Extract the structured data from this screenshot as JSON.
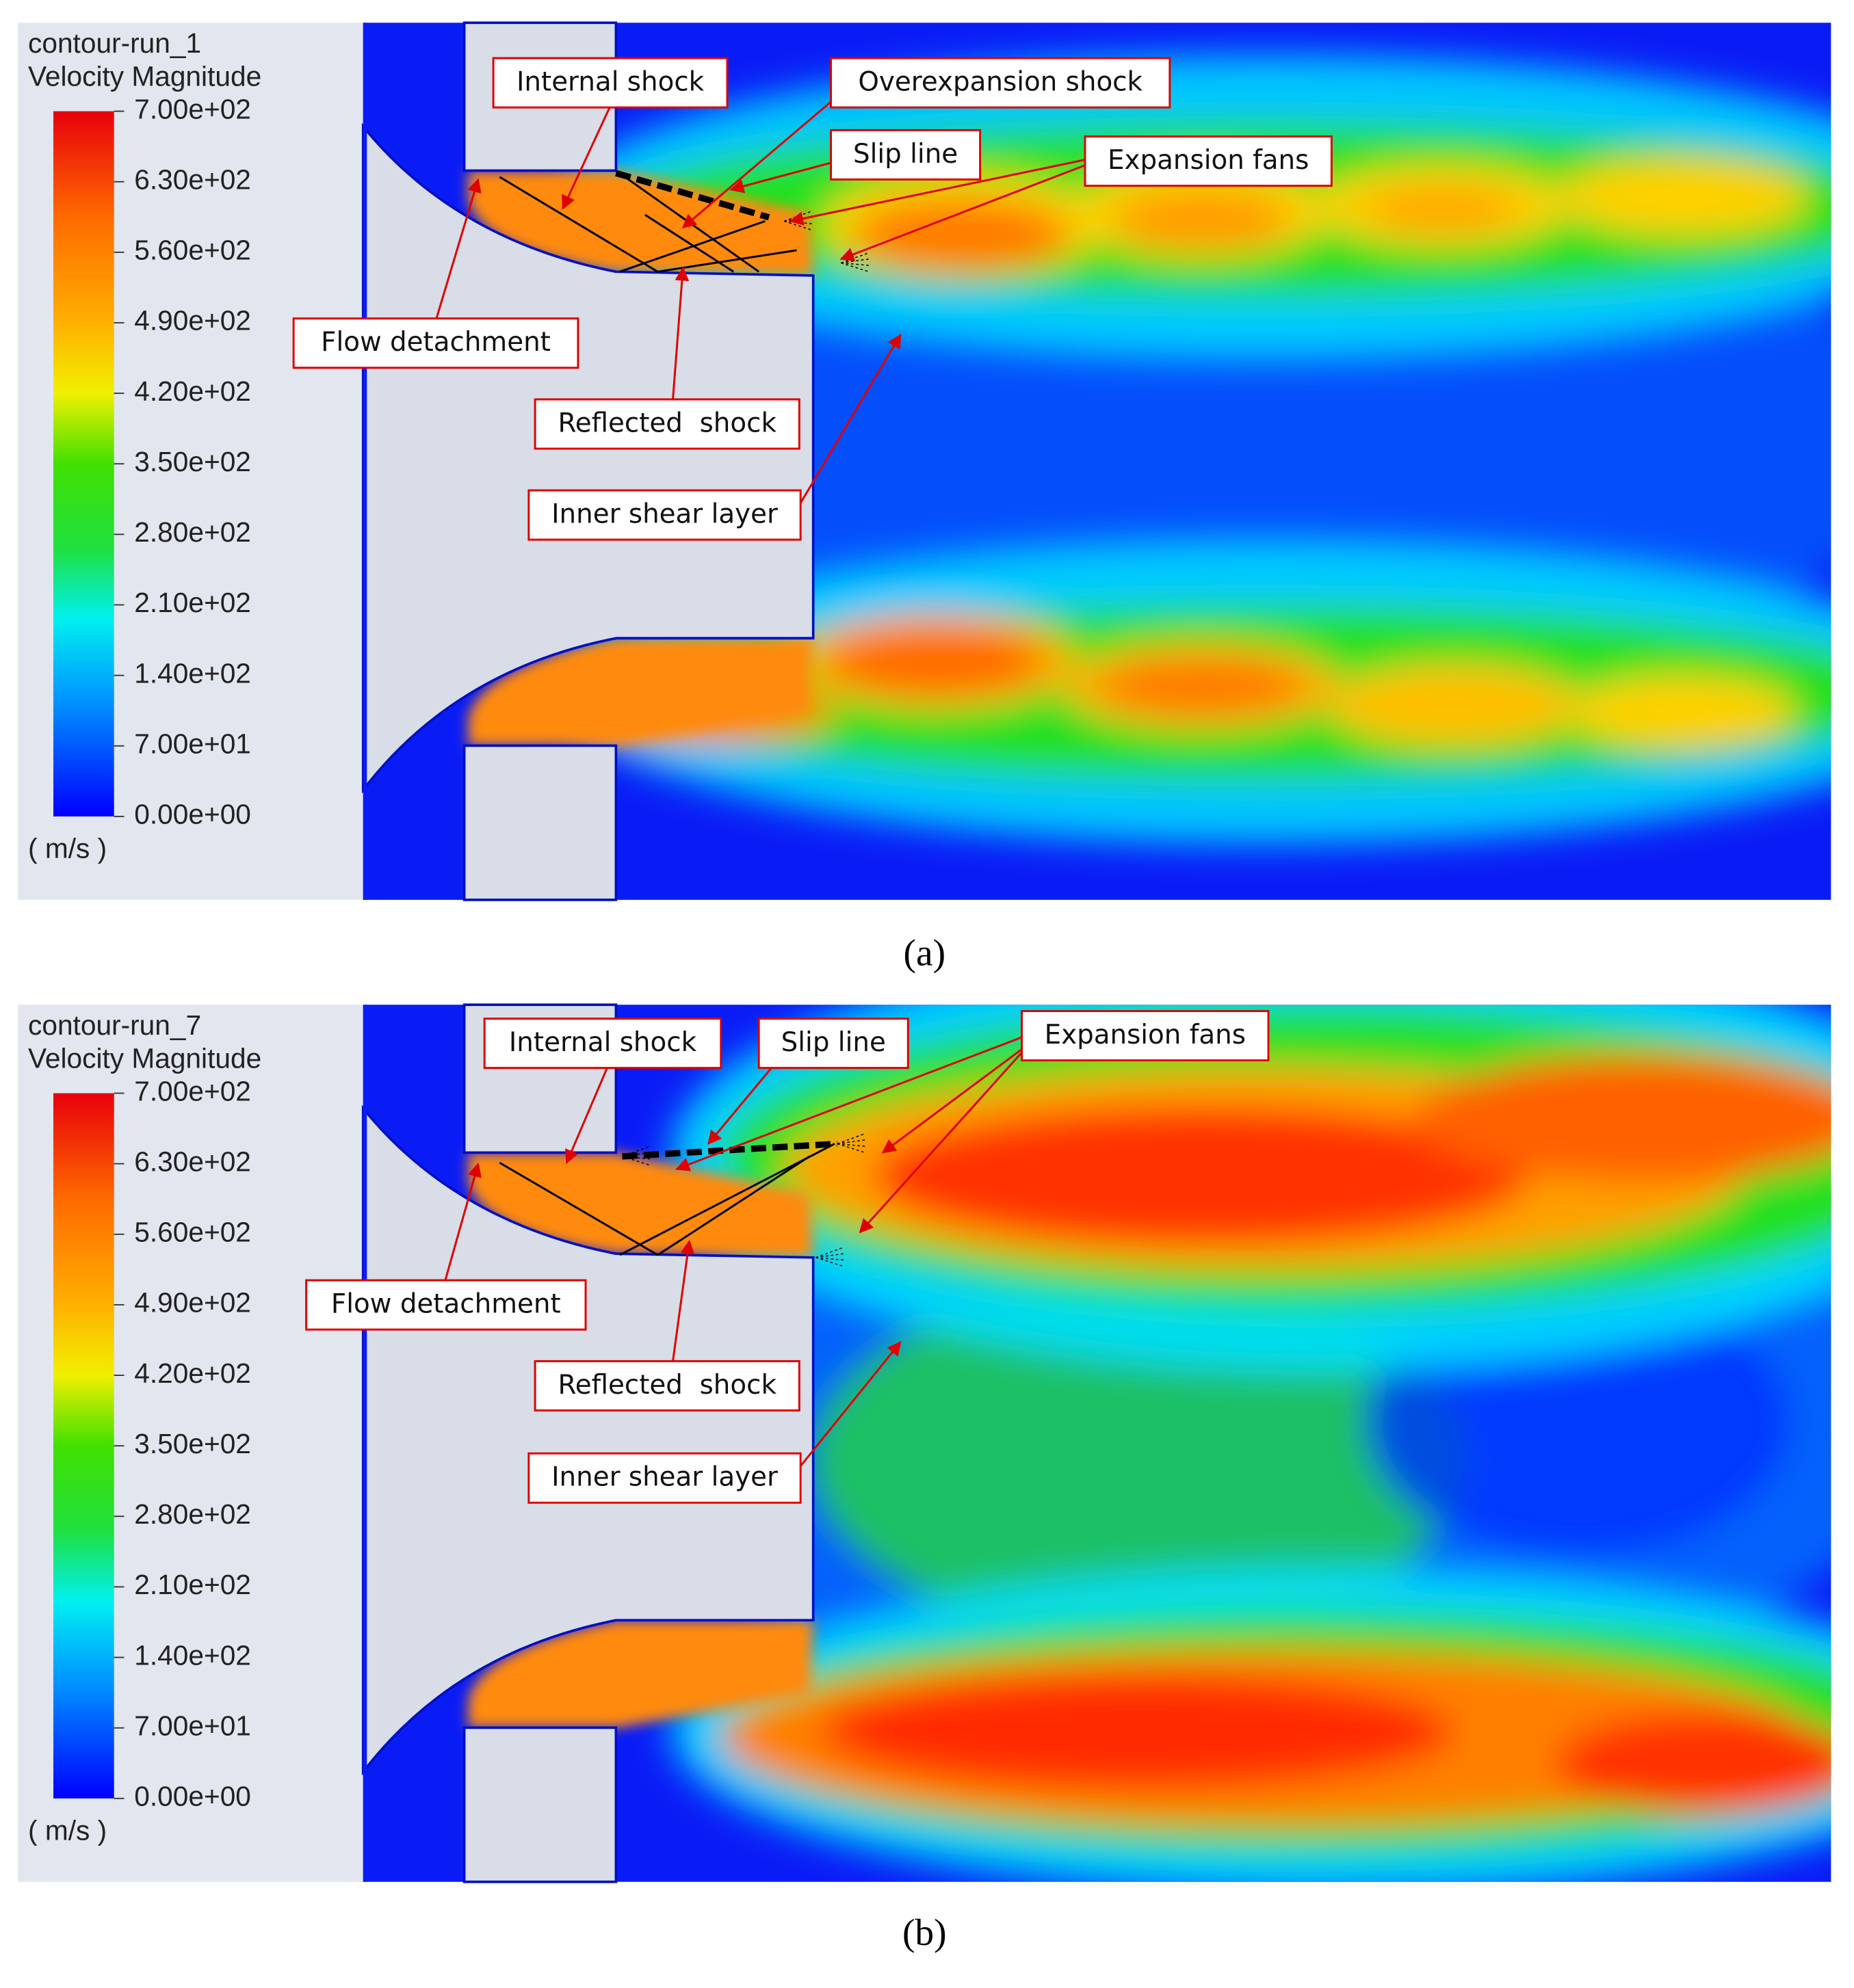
{
  "panels": [
    {
      "title": "contour-run_1",
      "subtitle": "Velocity Magnitude",
      "colorbar_ticks": [
        "7.00e+02",
        "6.30e+02",
        "5.60e+02",
        "4.90e+02",
        "4.20e+02",
        "3.50e+02",
        "2.80e+02",
        "2.10e+02",
        "1.40e+02",
        "7.00e+01",
        "0.00e+00"
      ],
      "unit": "( m/s )",
      "annotations": [
        "Internal shock",
        "Overexpansion shock",
        "Slip line",
        "Expansion fans",
        "Flow detachment",
        "Reflected  shock",
        "Inner shear layer"
      ],
      "caption": "(a)"
    },
    {
      "title": "contour-run_7",
      "subtitle": "Velocity Magnitude",
      "colorbar_ticks": [
        "7.00e+02",
        "6.30e+02",
        "5.60e+02",
        "4.90e+02",
        "4.20e+02",
        "3.50e+02",
        "2.80e+02",
        "2.10e+02",
        "1.40e+02",
        "7.00e+01",
        "0.00e+00"
      ],
      "unit": "( m/s )",
      "annotations": [
        "Internal shock",
        "Slip line",
        "Expansion fans",
        "Flow detachment",
        "Reflected  shock",
        "Inner shear layer"
      ],
      "caption": "(b)"
    }
  ]
}
